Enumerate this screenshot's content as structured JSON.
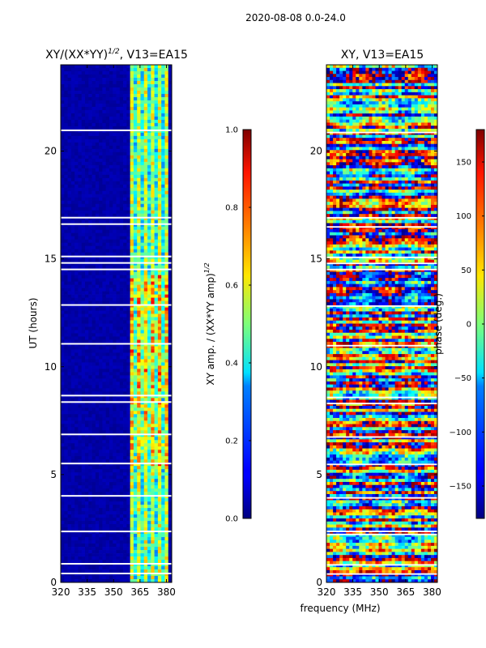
{
  "figure": {
    "suptitle": "2020-08-08 0.0-24.0",
    "xlabel": "frequency (MHz)"
  },
  "chart_data": [
    {
      "type": "heatmap",
      "title": "XY/(XX*YY)",
      "title_sup": "1/2",
      "title_suffix": ", V13=EA15",
      "xlabel": "",
      "ylabel": "UT (hours)",
      "x_range": [
        320,
        383
      ],
      "y_range": [
        0,
        24
      ],
      "x_ticks": [
        "320",
        "335",
        "350",
        "365",
        "380"
      ],
      "x_tick_values": [
        320,
        335,
        350,
        365,
        380
      ],
      "y_ticks": [
        "0",
        "5",
        "10",
        "15",
        "20"
      ],
      "y_tick_values": [
        0,
        5,
        10,
        15,
        20
      ],
      "colormap": "jet",
      "colorbar": {
        "label": "XY amp. / (XX*YY amp)",
        "label_sup": "1/2",
        "range": [
          0.0,
          1.0
        ],
        "ticks": [
          "0.0",
          "0.2",
          "0.4",
          "0.6",
          "0.8",
          "1.0"
        ],
        "tick_values": [
          0.0,
          0.2,
          0.4,
          0.6,
          0.8,
          1.0
        ]
      },
      "description_bands": {
        "low_band_mhz": [
          320,
          360
        ],
        "low_band_value": 0.02,
        "high_band_mhz": [
          360,
          381
        ],
        "high_band_value": 0.35
      }
    },
    {
      "type": "heatmap",
      "title": "XY, V13=EA15",
      "xlabel": "frequency (MHz)",
      "ylabel": "",
      "x_range": [
        320,
        383
      ],
      "y_range": [
        0,
        24
      ],
      "x_ticks": [
        "320",
        "335",
        "350",
        "365",
        "380"
      ],
      "x_tick_values": [
        320,
        335,
        350,
        365,
        380
      ],
      "y_ticks": [
        "0",
        "5",
        "10",
        "15",
        "20"
      ],
      "y_tick_values": [
        0,
        5,
        10,
        15,
        20
      ],
      "colormap": "jet",
      "colorbar": {
        "label": "phase (deg.)",
        "range": [
          -180,
          180
        ],
        "ticks": [
          "−150",
          "−100",
          "−50",
          "0",
          "50",
          "100",
          "150"
        ],
        "tick_values": [
          -150,
          -100,
          -50,
          0,
          50,
          100,
          150
        ]
      }
    }
  ]
}
